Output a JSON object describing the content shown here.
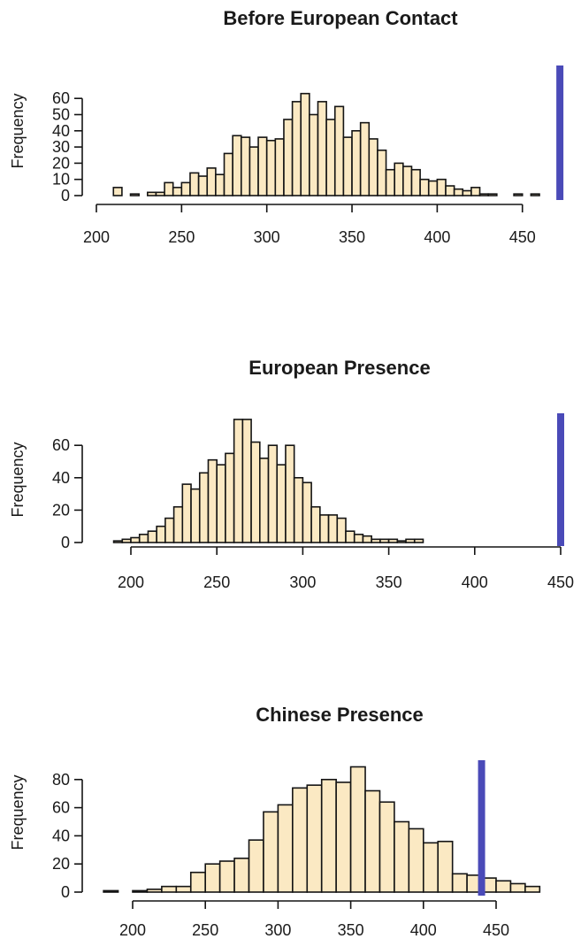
{
  "chart_data": [
    {
      "type": "histogram",
      "title": "Before European Contact",
      "ylabel": "Frequency",
      "xlabel": "",
      "x_ticks": [
        200,
        250,
        300,
        350,
        400,
        450
      ],
      "y_ticks": [
        0,
        10,
        20,
        30,
        40,
        50,
        60
      ],
      "xlim": [
        200,
        460
      ],
      "ylim": [
        0,
        65
      ],
      "bin_start": 210,
      "bin_width": 5,
      "counts": [
        5,
        0,
        1,
        0,
        2,
        2,
        8,
        5,
        8,
        14,
        12,
        17,
        13,
        26,
        37,
        36,
        30,
        36,
        34,
        35,
        47,
        58,
        63,
        50,
        58,
        47,
        55,
        36,
        40,
        45,
        35,
        28,
        16,
        20,
        18,
        16,
        10,
        9,
        10,
        6,
        4,
        3,
        5,
        1,
        1,
        0,
        0,
        1,
        0,
        1
      ],
      "observed_value": 472,
      "grid": false
    },
    {
      "type": "histogram",
      "title": "European Presence",
      "ylabel": "Frequency",
      "xlabel": "",
      "x_ticks": [
        200,
        250,
        300,
        350,
        400,
        450
      ],
      "y_ticks": [
        0,
        20,
        40,
        60
      ],
      "xlim": [
        200,
        450
      ],
      "ylim": [
        0,
        78
      ],
      "bin_start": 190,
      "bin_width": 5,
      "counts": [
        1,
        2,
        3,
        5,
        7,
        10,
        15,
        22,
        36,
        33,
        43,
        51,
        48,
        55,
        76,
        76,
        62,
        52,
        60,
        48,
        60,
        40,
        37,
        22,
        17,
        17,
        15,
        7,
        5,
        4,
        2,
        2,
        2,
        1,
        2,
        2
      ],
      "observed_value": 450,
      "grid": false
    },
    {
      "type": "histogram",
      "title": "Chinese Presence",
      "ylabel": "Frequency",
      "xlabel": "",
      "x_ticks": [
        200,
        250,
        300,
        350,
        400,
        450
      ],
      "y_ticks": [
        0,
        20,
        40,
        60,
        80
      ],
      "xlim": [
        200,
        450
      ],
      "ylim": [
        0,
        90
      ],
      "bin_start": 180,
      "bin_width": 10,
      "counts": [
        1,
        0,
        1,
        2,
        4,
        4,
        14,
        20,
        22,
        24,
        37,
        57,
        62,
        74,
        76,
        80,
        78,
        89,
        72,
        64,
        50,
        45,
        35,
        36,
        13,
        12,
        10,
        8,
        6,
        4
      ],
      "observed_value": 440,
      "grid": false
    }
  ]
}
